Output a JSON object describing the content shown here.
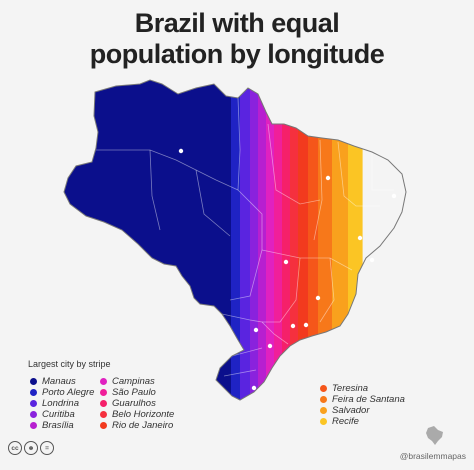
{
  "title_line1": "Brazil with equal",
  "title_line2": "population by longitude",
  "legend_title": "Largest city by stripe",
  "stripes": [
    {
      "city": "Manaus",
      "color": "#0b0f8c"
    },
    {
      "city": "Porto Alegre",
      "color": "#1f23c4"
    },
    {
      "city": "Londrina",
      "color": "#5a24e0"
    },
    {
      "city": "Curitiba",
      "color": "#8a22dd"
    },
    {
      "city": "Brasília",
      "color": "#b71fd0"
    },
    {
      "city": "Campinas",
      "color": "#e021c0"
    },
    {
      "city": "São Paulo",
      "color": "#f01f9a"
    },
    {
      "city": "Guarulhos",
      "color": "#f5206a"
    },
    {
      "city": "Belo Horizonte",
      "color": "#f5303e"
    },
    {
      "city": "Rio de Janeiro",
      "color": "#f23a1e"
    },
    {
      "city": "Teresina",
      "color": "#f5561a"
    },
    {
      "city": "Feira de Santana",
      "color": "#f7781a"
    },
    {
      "city": "Salvador",
      "color": "#f9a11d"
    },
    {
      "city": "Recife",
      "color": "#fbc524"
    }
  ],
  "credit": "@brasilemmapas",
  "license_icons": [
    "cc-icon",
    "by-icon",
    "nd-icon"
  ]
}
